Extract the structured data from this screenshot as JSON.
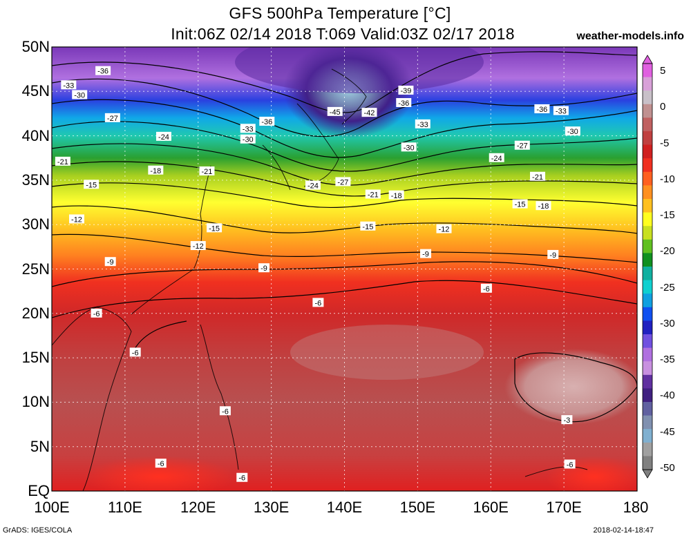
{
  "header": {
    "title": "GFS 500hPa Temperature [°C]",
    "subtitle": "Init:06Z 02/14 2018 T:069 Valid:03Z 02/17 2018",
    "brand": "weather-models.info"
  },
  "footer": {
    "credit": "GrADS: IGES/COLA",
    "timestamp": "2018-02-14-18:47"
  },
  "map": {
    "lon_range": [
      100,
      180
    ],
    "lat_range": [
      0,
      50
    ],
    "lat_labels": [
      "50N",
      "45N",
      "40N",
      "35N",
      "30N",
      "25N",
      "20N",
      "15N",
      "10N",
      "5N",
      "EQ"
    ],
    "lon_labels": [
      "100E",
      "110E",
      "120E",
      "130E",
      "140E",
      "150E",
      "160E",
      "170E",
      "180"
    ]
  },
  "colorbar": {
    "labels": [
      "5",
      "0",
      "-5",
      "-10",
      "-15",
      "-20",
      "-25",
      "-30",
      "-35",
      "-40",
      "-45",
      "-50"
    ],
    "colors": [
      "#e060e0",
      "#d8a0d8",
      "#c8c0c8",
      "#c09090",
      "#c06060",
      "#c04040",
      "#d02020",
      "#f03020",
      "#ff6020",
      "#ff9020",
      "#ffc020",
      "#ffff20",
      "#c8e020",
      "#60c020",
      "#109020",
      "#10b0a0",
      "#10d0d0",
      "#10a0e0",
      "#1050f0",
      "#2020c0",
      "#7050e0",
      "#b070e0",
      "#c890e0",
      "#6030a0",
      "#402080",
      "#6060a0",
      "#8090b0",
      "#80b0d0",
      "#a0a0a0",
      "#808080"
    ]
  },
  "contour_labels": [
    {
      "text": "-36",
      "lon": 107.0,
      "lat": 47.3
    },
    {
      "text": "-33",
      "lon": 102.3,
      "lat": 45.7
    },
    {
      "text": "-30",
      "lon": 103.8,
      "lat": 44.6
    },
    {
      "text": "-27",
      "lon": 108.3,
      "lat": 42.0
    },
    {
      "text": "-24",
      "lon": 115.3,
      "lat": 39.9
    },
    {
      "text": "-21",
      "lon": 101.5,
      "lat": 37.1
    },
    {
      "text": "-18",
      "lon": 114.2,
      "lat": 36.1
    },
    {
      "text": "-21",
      "lon": 121.2,
      "lat": 36.0
    },
    {
      "text": "-15",
      "lon": 105.4,
      "lat": 34.5
    },
    {
      "text": "-12",
      "lon": 103.4,
      "lat": 30.6
    },
    {
      "text": "-15",
      "lon": 122.2,
      "lat": 29.6
    },
    {
      "text": "-12",
      "lon": 120.0,
      "lat": 27.6
    },
    {
      "text": "-9",
      "lon": 108.0,
      "lat": 25.8
    },
    {
      "text": "-9",
      "lon": 129.0,
      "lat": 25.1
    },
    {
      "text": "-6",
      "lon": 106.1,
      "lat": 20.0
    },
    {
      "text": "-6",
      "lon": 111.4,
      "lat": 15.6
    },
    {
      "text": "-6",
      "lon": 136.4,
      "lat": 21.2
    },
    {
      "text": "-6",
      "lon": 159.4,
      "lat": 22.8
    },
    {
      "text": "-6",
      "lon": 123.7,
      "lat": 9.0
    },
    {
      "text": "-6",
      "lon": 114.9,
      "lat": 3.1
    },
    {
      "text": "-6",
      "lon": 126.0,
      "lat": 1.5
    },
    {
      "text": "-3",
      "lon": 170.4,
      "lat": 8.0
    },
    {
      "text": "-6",
      "lon": 170.8,
      "lat": 3.0
    },
    {
      "text": "-36",
      "lon": 129.4,
      "lat": 41.6
    },
    {
      "text": "-33",
      "lon": 126.8,
      "lat": 40.8
    },
    {
      "text": "-30",
      "lon": 126.8,
      "lat": 39.6
    },
    {
      "text": "-24",
      "lon": 135.7,
      "lat": 34.4
    },
    {
      "text": "-27",
      "lon": 139.8,
      "lat": 34.8
    },
    {
      "text": "-45",
      "lon": 138.7,
      "lat": 42.7
    },
    {
      "text": "-42",
      "lon": 143.4,
      "lat": 42.6
    },
    {
      "text": "-39",
      "lon": 148.4,
      "lat": 45.1
    },
    {
      "text": "-36",
      "lon": 148.1,
      "lat": 43.7
    },
    {
      "text": "-33",
      "lon": 150.7,
      "lat": 41.3
    },
    {
      "text": "-30",
      "lon": 148.8,
      "lat": 38.7
    },
    {
      "text": "-21",
      "lon": 143.9,
      "lat": 33.4
    },
    {
      "text": "-18",
      "lon": 147.1,
      "lat": 33.3
    },
    {
      "text": "-15",
      "lon": 143.2,
      "lat": 29.8
    },
    {
      "text": "-12",
      "lon": 153.6,
      "lat": 29.5
    },
    {
      "text": "-9",
      "lon": 151.1,
      "lat": 26.7
    },
    {
      "text": "-36",
      "lon": 167.0,
      "lat": 43.0
    },
    {
      "text": "-33",
      "lon": 169.6,
      "lat": 42.8
    },
    {
      "text": "-30",
      "lon": 171.2,
      "lat": 40.5
    },
    {
      "text": "-27",
      "lon": 164.3,
      "lat": 38.9
    },
    {
      "text": "-24",
      "lon": 160.8,
      "lat": 37.5
    },
    {
      "text": "-21",
      "lon": 166.4,
      "lat": 35.4
    },
    {
      "text": "-15",
      "lon": 164.0,
      "lat": 32.3
    },
    {
      "text": "-18",
      "lon": 167.2,
      "lat": 32.1
    },
    {
      "text": "-9",
      "lon": 168.5,
      "lat": 26.6
    }
  ]
}
